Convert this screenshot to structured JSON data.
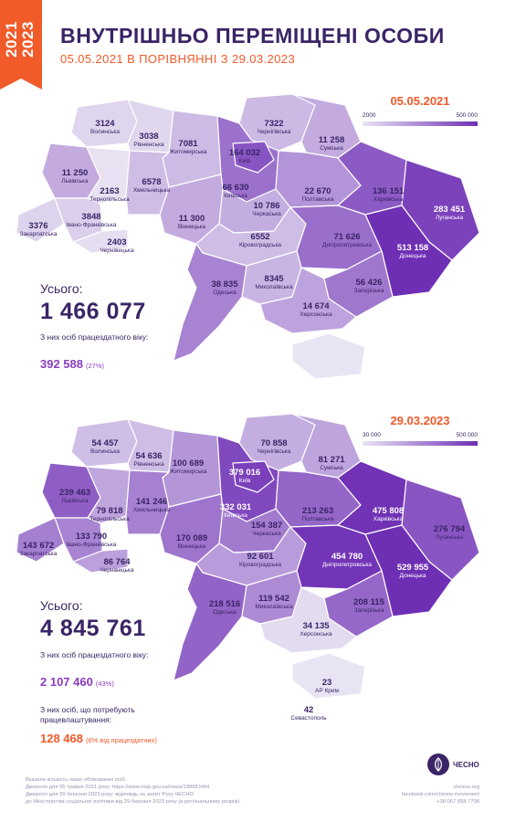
{
  "ribbon": {
    "year_top": "2021",
    "year_bottom": "2023"
  },
  "header": {
    "title": "ВНУТРІШНЬО ПЕРЕМІЩЕНІ ОСОБИ",
    "subtitle": "05.05.2021 В ПОРІВНЯННІ З 29.03.2023"
  },
  "map2021": {
    "legend": {
      "date": "05.05.2021",
      "min": "2000",
      "max": "500 000"
    },
    "regions": [
      {
        "name": "Волинська",
        "value": "3124"
      },
      {
        "name": "Рівненська",
        "value": "3038"
      },
      {
        "name": "Житомирська",
        "value": "7081"
      },
      {
        "name": "Київ",
        "value": "164 032"
      },
      {
        "name": "Чернігівська",
        "value": "7322"
      },
      {
        "name": "Сумська",
        "value": "11 258"
      },
      {
        "name": "Львівська",
        "value": "11 250"
      },
      {
        "name": "Тернопільська",
        "value": "2163"
      },
      {
        "name": "Хмельницька",
        "value": "6578"
      },
      {
        "name": "Київська",
        "value": "66 630"
      },
      {
        "name": "Полтавська",
        "value": "22 670"
      },
      {
        "name": "Харківська",
        "value": "136 151"
      },
      {
        "name": "Луганська",
        "value": "283 451"
      },
      {
        "name": "Закарпатська",
        "value": "3376"
      },
      {
        "name": "Івано-Франківська",
        "value": "3848"
      },
      {
        "name": "Вінницька",
        "value": "11 300"
      },
      {
        "name": "Черкаська",
        "value": "10 786"
      },
      {
        "name": "Чернівецька",
        "value": "2403"
      },
      {
        "name": "Кіровоградська",
        "value": "6552"
      },
      {
        "name": "Дніпропетровська",
        "value": "71 626"
      },
      {
        "name": "Донецька",
        "value": "513 158"
      },
      {
        "name": "Одеська",
        "value": "38 835"
      },
      {
        "name": "Миколаївська",
        "value": "8345"
      },
      {
        "name": "Запорізька",
        "value": "56 426"
      },
      {
        "name": "Херсонська",
        "value": "14 674"
      }
    ],
    "total_label": "Усього:",
    "total_value": "1 466 077",
    "working_label": "З них осіб працездатного віку:",
    "working_value": "392 588",
    "working_pct": "(27%)"
  },
  "map2023": {
    "legend": {
      "date": "29.03.2023",
      "min": "30 000",
      "max": "500 000"
    },
    "regions": [
      {
        "name": "Волинська",
        "value": "54 457"
      },
      {
        "name": "Рівненська",
        "value": "54 636"
      },
      {
        "name": "Житомирська",
        "value": "100 689"
      },
      {
        "name": "Київ",
        "value": "379 016"
      },
      {
        "name": "Чернігівська",
        "value": "70 858"
      },
      {
        "name": "Сумська",
        "value": "81 271"
      },
      {
        "name": "Львівська",
        "value": "239 463"
      },
      {
        "name": "Тернопільська",
        "value": "79 818"
      },
      {
        "name": "Хмельницька",
        "value": "141 246"
      },
      {
        "name": "Київська",
        "value": "332 031"
      },
      {
        "name": "Полтавська",
        "value": "213 263"
      },
      {
        "name": "Харківська",
        "value": "475 808"
      },
      {
        "name": "Луганська",
        "value": "276 794"
      },
      {
        "name": "Закарпатська",
        "value": "143 672"
      },
      {
        "name": "Івано-Франківська",
        "value": "133 790"
      },
      {
        "name": "Вінницька",
        "value": "170 089"
      },
      {
        "name": "Черкаська",
        "value": "154 387"
      },
      {
        "name": "Чернівецька",
        "value": "86 764"
      },
      {
        "name": "Кіровоградська",
        "value": "92 601"
      },
      {
        "name": "Дніпропетровська",
        "value": "454 780"
      },
      {
        "name": "Донецька",
        "value": "529 955"
      },
      {
        "name": "Одеська",
        "value": "218 516"
      },
      {
        "name": "Миколаївська",
        "value": "119 542"
      },
      {
        "name": "Запорізька",
        "value": "208 115"
      },
      {
        "name": "Херсонська",
        "value": "34 135"
      },
      {
        "name": "АР Крим",
        "value": "23"
      },
      {
        "name": "Севастополь",
        "value": "42"
      }
    ],
    "total_label": "Усього:",
    "total_value": "4 845 761",
    "working_label": "З них осіб працездатного віку:",
    "working_value": "2 107 460",
    "working_pct": "(43%)",
    "employ_label": "З них осіб, що потребують працевлаштування:",
    "employ_value": "128 468",
    "employ_pct": "(6% від працездатних)"
  },
  "footer": {
    "note1": "Вказана кількість лише облікованих осіб.",
    "note2": "Джерело для 05 травня 2021 року: https://www.msp.gov.ua/news/19998.html",
    "note3": "Джерело для 29 березня 2023 року: відповідь на запит Руху ЧЕСНО",
    "note4": "до Міністерства соціальної політики від 29 березня 2023 року (в регіональному розрізі).",
    "brand": "ЧЕСНО",
    "site": "chesno.org",
    "facebook": "facebook.com/chesno.movement",
    "phone": "+38 067 658 7798"
  }
}
